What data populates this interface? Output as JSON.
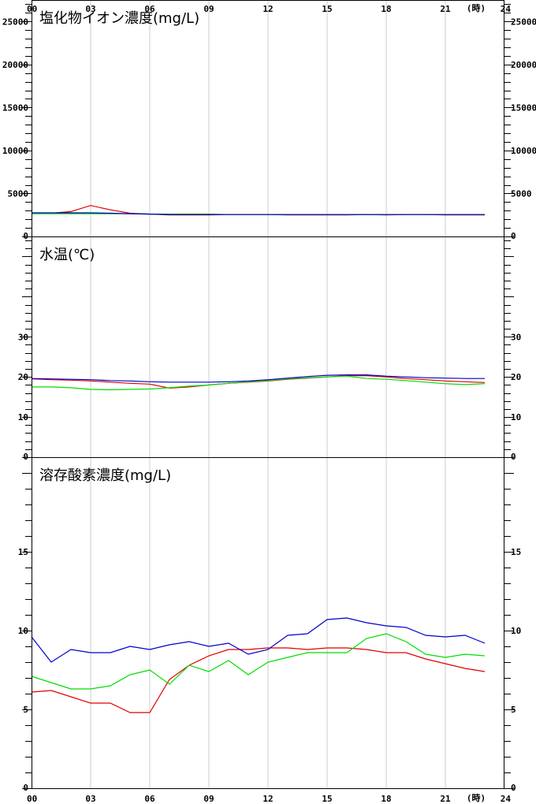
{
  "hours": [
    "00",
    "03",
    "06",
    "09",
    "12",
    "15",
    "18",
    "21",
    "24"
  ],
  "hour_unit": "(時)",
  "colors": {
    "red": "#e00000",
    "green": "#00dd00",
    "blue": "#0000cc",
    "grid": "#cccccc",
    "axis": "#000000"
  },
  "chart_data": [
    {
      "type": "line",
      "title": "塩化物イオン濃度(mg/L)",
      "ylim": [
        0,
        27500
      ],
      "yticks": [
        0,
        5000,
        10000,
        15000,
        20000,
        25000
      ],
      "ytick_labels": [
        "0",
        "5000",
        "10000",
        "15000",
        "20000",
        "25000"
      ],
      "x": [
        0,
        1,
        2,
        3,
        4,
        5,
        6,
        7,
        8,
        9,
        10,
        11,
        12,
        13,
        14,
        15,
        16,
        17,
        18,
        19,
        20,
        21,
        22,
        23
      ],
      "series": [
        {
          "color": "#e00000",
          "values": [
            2700,
            2700,
            2900,
            3600,
            3100,
            2700,
            2600,
            2500,
            2500,
            2500,
            2550,
            2550,
            2550,
            2500,
            2500,
            2500,
            2500,
            2550,
            2500,
            2550,
            2550,
            2500,
            2500,
            2500
          ]
        },
        {
          "color": "#00dd00",
          "values": [
            2650,
            2650,
            2650,
            2650,
            2650,
            2650,
            2600,
            2600,
            2600,
            2600,
            2550,
            2550,
            2550,
            2550,
            2550,
            2550,
            2550,
            2550,
            2550,
            2550,
            2550,
            2550,
            2550,
            2550
          ]
        },
        {
          "color": "#0000cc",
          "values": [
            2750,
            2750,
            2750,
            2750,
            2700,
            2650,
            2600,
            2550,
            2550,
            2550,
            2550,
            2550,
            2550,
            2550,
            2550,
            2550,
            2550,
            2550,
            2550,
            2550,
            2550,
            2550,
            2550,
            2550
          ]
        }
      ]
    },
    {
      "type": "line",
      "title": "水温(℃)",
      "ylim": [
        0,
        55
      ],
      "yticks": [
        0,
        10,
        20,
        30
      ],
      "ytick_labels": [
        "0",
        "10",
        "20",
        "30"
      ],
      "x": [
        0,
        1,
        2,
        3,
        4,
        5,
        6,
        7,
        8,
        9,
        10,
        11,
        12,
        13,
        14,
        15,
        16,
        17,
        18,
        19,
        20,
        21,
        22,
        23
      ],
      "series": [
        {
          "color": "#e00000",
          "values": [
            19.5,
            19.3,
            19.2,
            19.0,
            18.7,
            18.4,
            18.2,
            17.2,
            17.5,
            18.0,
            18.4,
            18.7,
            19.0,
            19.4,
            19.7,
            20.0,
            20.3,
            20.3,
            20.0,
            19.6,
            19.3,
            19.0,
            18.8,
            18.6
          ]
        },
        {
          "color": "#00dd00",
          "values": [
            17.5,
            17.5,
            17.3,
            16.9,
            16.8,
            16.9,
            17.0,
            17.3,
            17.7,
            18.0,
            18.4,
            18.8,
            19.1,
            19.5,
            19.8,
            20.0,
            20.2,
            19.6,
            19.4,
            19.1,
            18.7,
            18.3,
            18.1,
            18.3
          ]
        },
        {
          "color": "#0000cc",
          "values": [
            19.6,
            19.5,
            19.4,
            19.3,
            19.1,
            19.0,
            18.8,
            18.7,
            18.7,
            18.7,
            18.8,
            19.0,
            19.3,
            19.7,
            20.1,
            20.4,
            20.5,
            20.5,
            20.2,
            20.0,
            19.8,
            19.7,
            19.6,
            19.6
          ]
        }
      ]
    },
    {
      "type": "line",
      "title": "溶存酸素濃度(mg/L)",
      "ylim": [
        0,
        21
      ],
      "yticks": [
        0,
        5,
        10,
        15
      ],
      "ytick_labels": [
        "0",
        "5",
        "10",
        "15"
      ],
      "x": [
        0,
        1,
        2,
        3,
        4,
        5,
        6,
        7,
        8,
        9,
        10,
        11,
        12,
        13,
        14,
        15,
        16,
        17,
        18,
        19,
        20,
        21,
        22,
        23
      ],
      "series": [
        {
          "color": "#e00000",
          "values": [
            6.1,
            6.2,
            5.8,
            5.4,
            5.4,
            4.8,
            4.8,
            6.9,
            7.8,
            8.4,
            8.8,
            8.8,
            8.9,
            8.9,
            8.8,
            8.9,
            8.9,
            8.8,
            8.6,
            8.6,
            8.2,
            7.9,
            7.6,
            7.4
          ]
        },
        {
          "color": "#00dd00",
          "values": [
            7.1,
            6.7,
            6.3,
            6.3,
            6.5,
            7.2,
            7.5,
            6.6,
            7.8,
            7.4,
            8.1,
            7.2,
            8.0,
            8.3,
            8.6,
            8.6,
            8.6,
            9.5,
            9.8,
            9.3,
            8.5,
            8.3,
            8.5,
            8.4
          ]
        },
        {
          "color": "#0000cc",
          "values": [
            9.6,
            8.0,
            8.8,
            8.6,
            8.6,
            9.0,
            8.8,
            9.1,
            9.3,
            9.0,
            9.2,
            8.5,
            8.8,
            9.7,
            9.8,
            10.7,
            10.8,
            10.5,
            10.3,
            10.2,
            9.7,
            9.6,
            9.7,
            9.2
          ]
        }
      ]
    }
  ]
}
